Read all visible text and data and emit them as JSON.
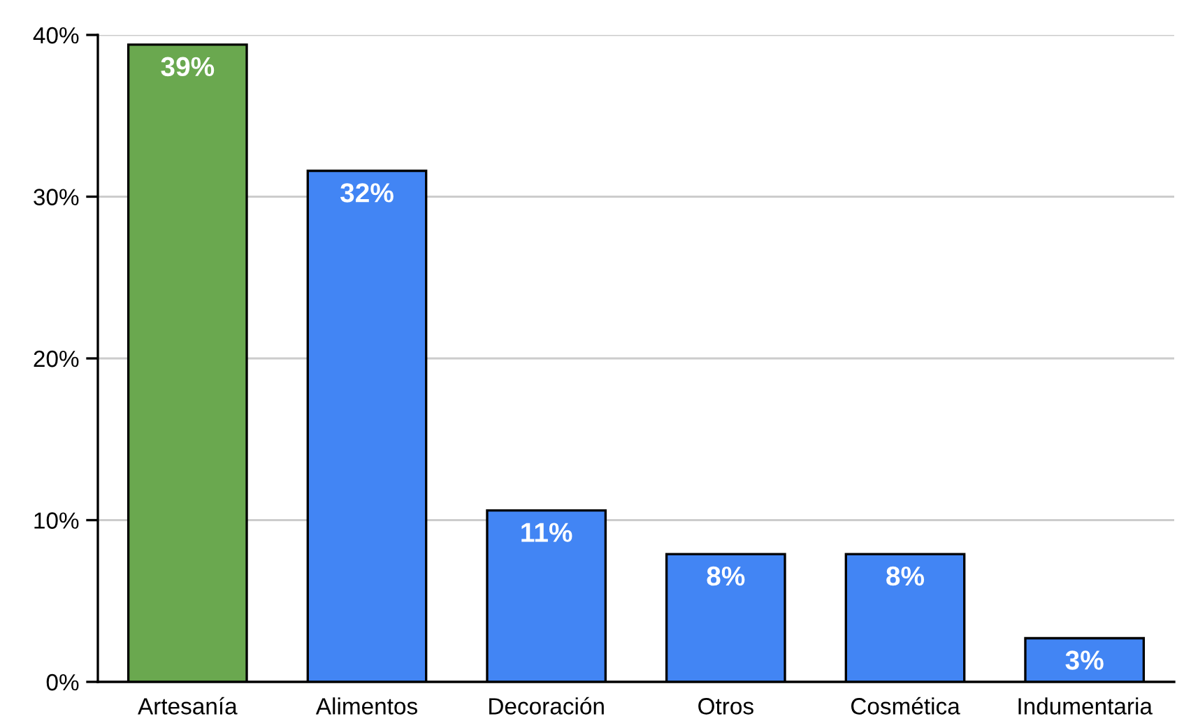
{
  "chart_data": {
    "type": "bar",
    "categories": [
      "Artesanía",
      "Alimentos",
      "Decoración",
      "Otros",
      "Cosmética",
      "Indumentaria"
    ],
    "values": [
      39.4,
      31.6,
      10.6,
      7.9,
      7.9,
      2.7
    ],
    "colors": [
      "#6aa84f",
      "#4285f4",
      "#4285f4",
      "#4285f4",
      "#4285f4",
      "#4285f4"
    ],
    "value_labels": [
      "39%",
      "32%",
      "11%",
      "8%",
      "8%",
      "3%"
    ],
    "ylim": [
      0,
      40
    ],
    "yticks": [
      {
        "value": 0,
        "label": "0%"
      },
      {
        "value": 10,
        "label": "10%"
      },
      {
        "value": 20,
        "label": "20%"
      },
      {
        "value": 30,
        "label": "30%"
      },
      {
        "value": 40,
        "label": "40%"
      }
    ],
    "grid": "y"
  }
}
